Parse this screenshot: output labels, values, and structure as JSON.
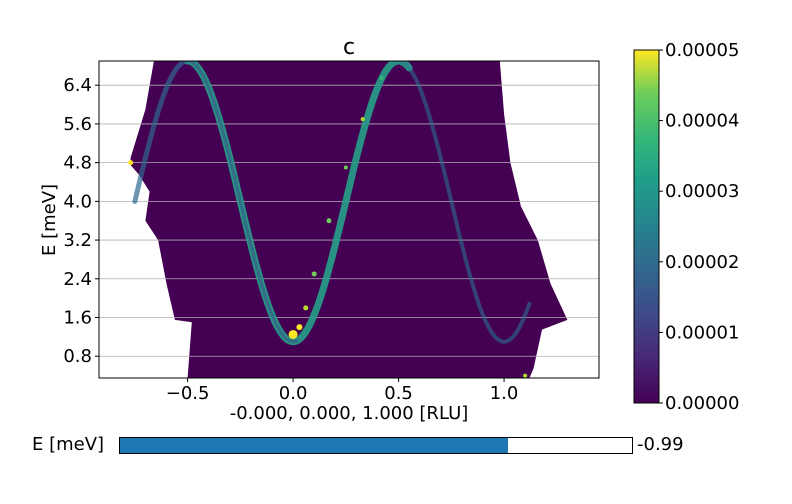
{
  "chart_data": {
    "type": "heatmap",
    "title": "c",
    "xlabel": "-0.000, 0.000, 1.000 [RLU]",
    "ylabel": "E [meV]",
    "xlim": [
      -0.92,
      1.45
    ],
    "ylim": [
      0.35,
      6.9
    ],
    "x_ticks": [
      -0.5,
      0.0,
      0.5,
      1.0
    ],
    "x_tick_labels": [
      "−0.5",
      "0.0",
      "0.5",
      "1.0"
    ],
    "y_ticks": [
      0.8,
      1.6,
      2.4,
      3.2,
      4.0,
      4.8,
      5.6,
      6.4
    ],
    "y_tick_labels": [
      "0.8",
      "1.6",
      "2.4",
      "3.2",
      "4.0",
      "4.8",
      "5.6",
      "6.4"
    ],
    "grid": "horizontal",
    "background_color": "#440154",
    "dispersion": {
      "description": "cosine-like spin-wave branches with minima at 0.0 and 1.0 RLU",
      "minimum_energy_meV": 1.1,
      "maximum_energy_meV": 6.9,
      "center_x": [
        0.0,
        1.0
      ],
      "period_RLU": 1.0
    },
    "colorbar": {
      "colormap": "viridis",
      "min": 0.0,
      "max": 5e-05,
      "ticks": [
        0.0,
        1e-05,
        2e-05,
        3e-05,
        4e-05,
        5e-05
      ],
      "tick_labels": [
        "0.00000",
        "0.00001",
        "0.00002",
        "0.00003",
        "0.00004",
        "0.00005"
      ]
    }
  },
  "slider": {
    "label": "E [meV]",
    "value_text": "-0.99",
    "fill_fraction": 0.758,
    "fill_color": "#1f77b4"
  }
}
